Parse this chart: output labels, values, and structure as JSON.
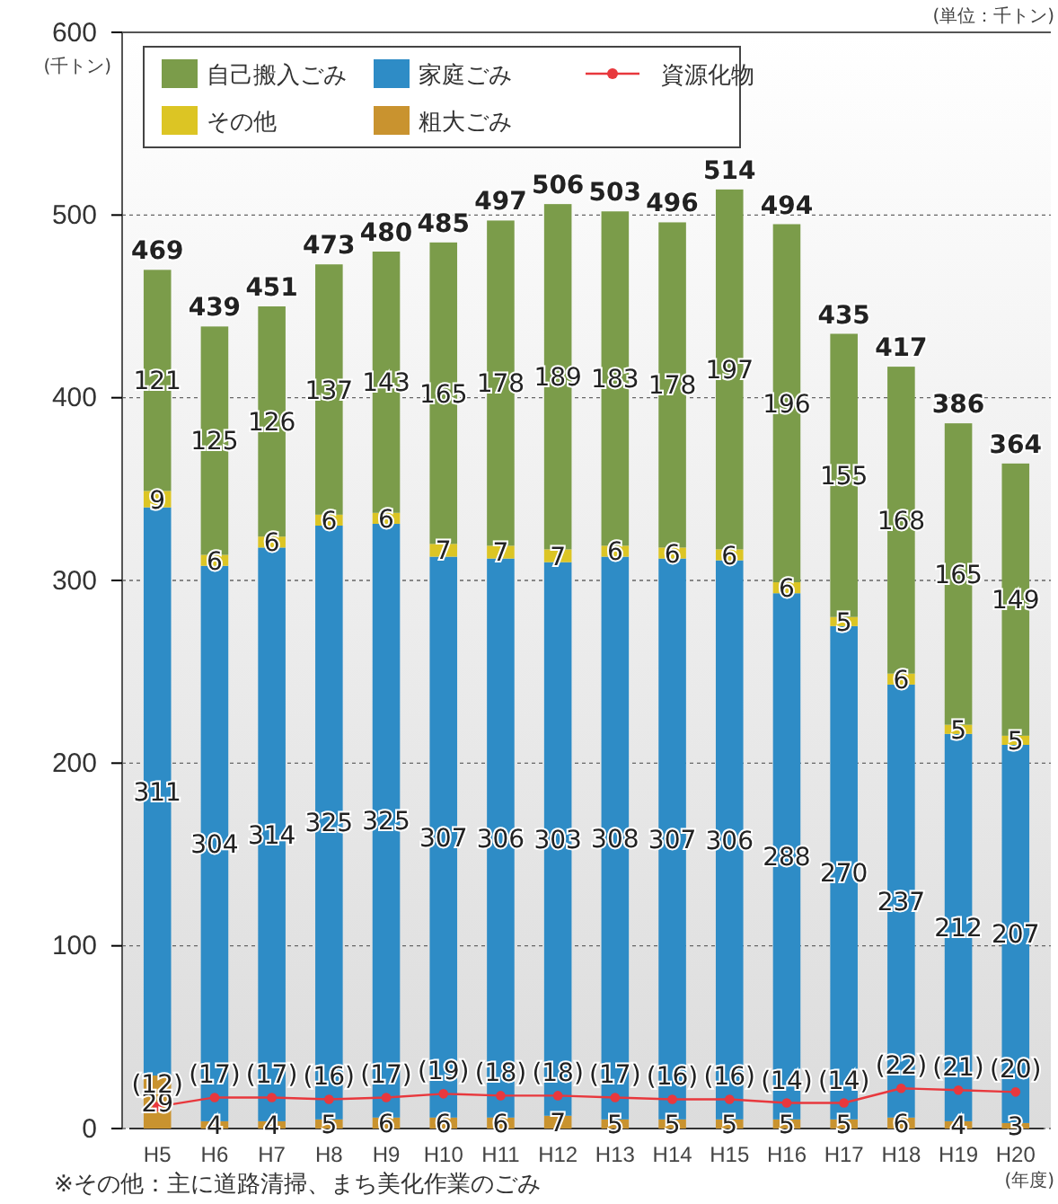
{
  "chart_data": {
    "type": "bar",
    "stacked": true,
    "ylabel": "(千トン)",
    "xlabel": "(年度)",
    "annotations": [
      "(単位：千トン)",
      "※その他：主に道路清掃、まち美化作業のごみ"
    ],
    "categories": [
      "H5",
      "H6",
      "H7",
      "H8",
      "H9",
      "H10",
      "H11",
      "H12",
      "H13",
      "H14",
      "H15",
      "H16",
      "H17",
      "H18",
      "H19",
      "H20"
    ],
    "ylim": [
      0,
      600
    ],
    "yticks": [
      0,
      100,
      200,
      300,
      400,
      500,
      600
    ],
    "grid": "y",
    "legend": "top left",
    "data_labels": true,
    "totals": [
      "469",
      "439",
      "451",
      "473",
      "480",
      "485",
      "497",
      "506",
      "503",
      "496",
      "514",
      "494",
      "435",
      "417",
      "386",
      "364"
    ],
    "series": [
      {
        "name": "粗大ごみ",
        "color": "#c9932f",
        "values": [
          29,
          4,
          4,
          5,
          6,
          6,
          6,
          7,
          5,
          5,
          5,
          5,
          5,
          6,
          4,
          3
        ]
      },
      {
        "name": "家庭ごみ",
        "color": "#2e8cc6",
        "values": [
          311,
          304,
          314,
          325,
          325,
          307,
          306,
          303,
          308,
          307,
          306,
          288,
          270,
          237,
          212,
          207
        ]
      },
      {
        "name": "その他",
        "color": "#dcc524",
        "values": [
          9,
          6,
          6,
          6,
          6,
          7,
          7,
          7,
          6,
          6,
          6,
          6,
          5,
          6,
          5,
          5
        ]
      },
      {
        "name": "自己搬入ごみ",
        "color": "#7b9c4a",
        "values": [
          121,
          125,
          126,
          137,
          143,
          165,
          178,
          189,
          183,
          178,
          197,
          196,
          155,
          168,
          165,
          149
        ]
      },
      {
        "name": "資源化物",
        "type": "line",
        "color": "#e8383d",
        "marker": "circle",
        "values": [
          12,
          17,
          17,
          16,
          17,
          19,
          18,
          18,
          17,
          16,
          16,
          14,
          14,
          22,
          21,
          20
        ],
        "value_labels": [
          "(12)",
          "(17)",
          "(17)",
          "(16)",
          "(17)",
          "(19)",
          "(18)",
          "(18)",
          "(17)",
          "(16)",
          "(16)",
          "(14)",
          "(14)",
          "(22)",
          "(21)",
          "(20)"
        ]
      }
    ]
  }
}
